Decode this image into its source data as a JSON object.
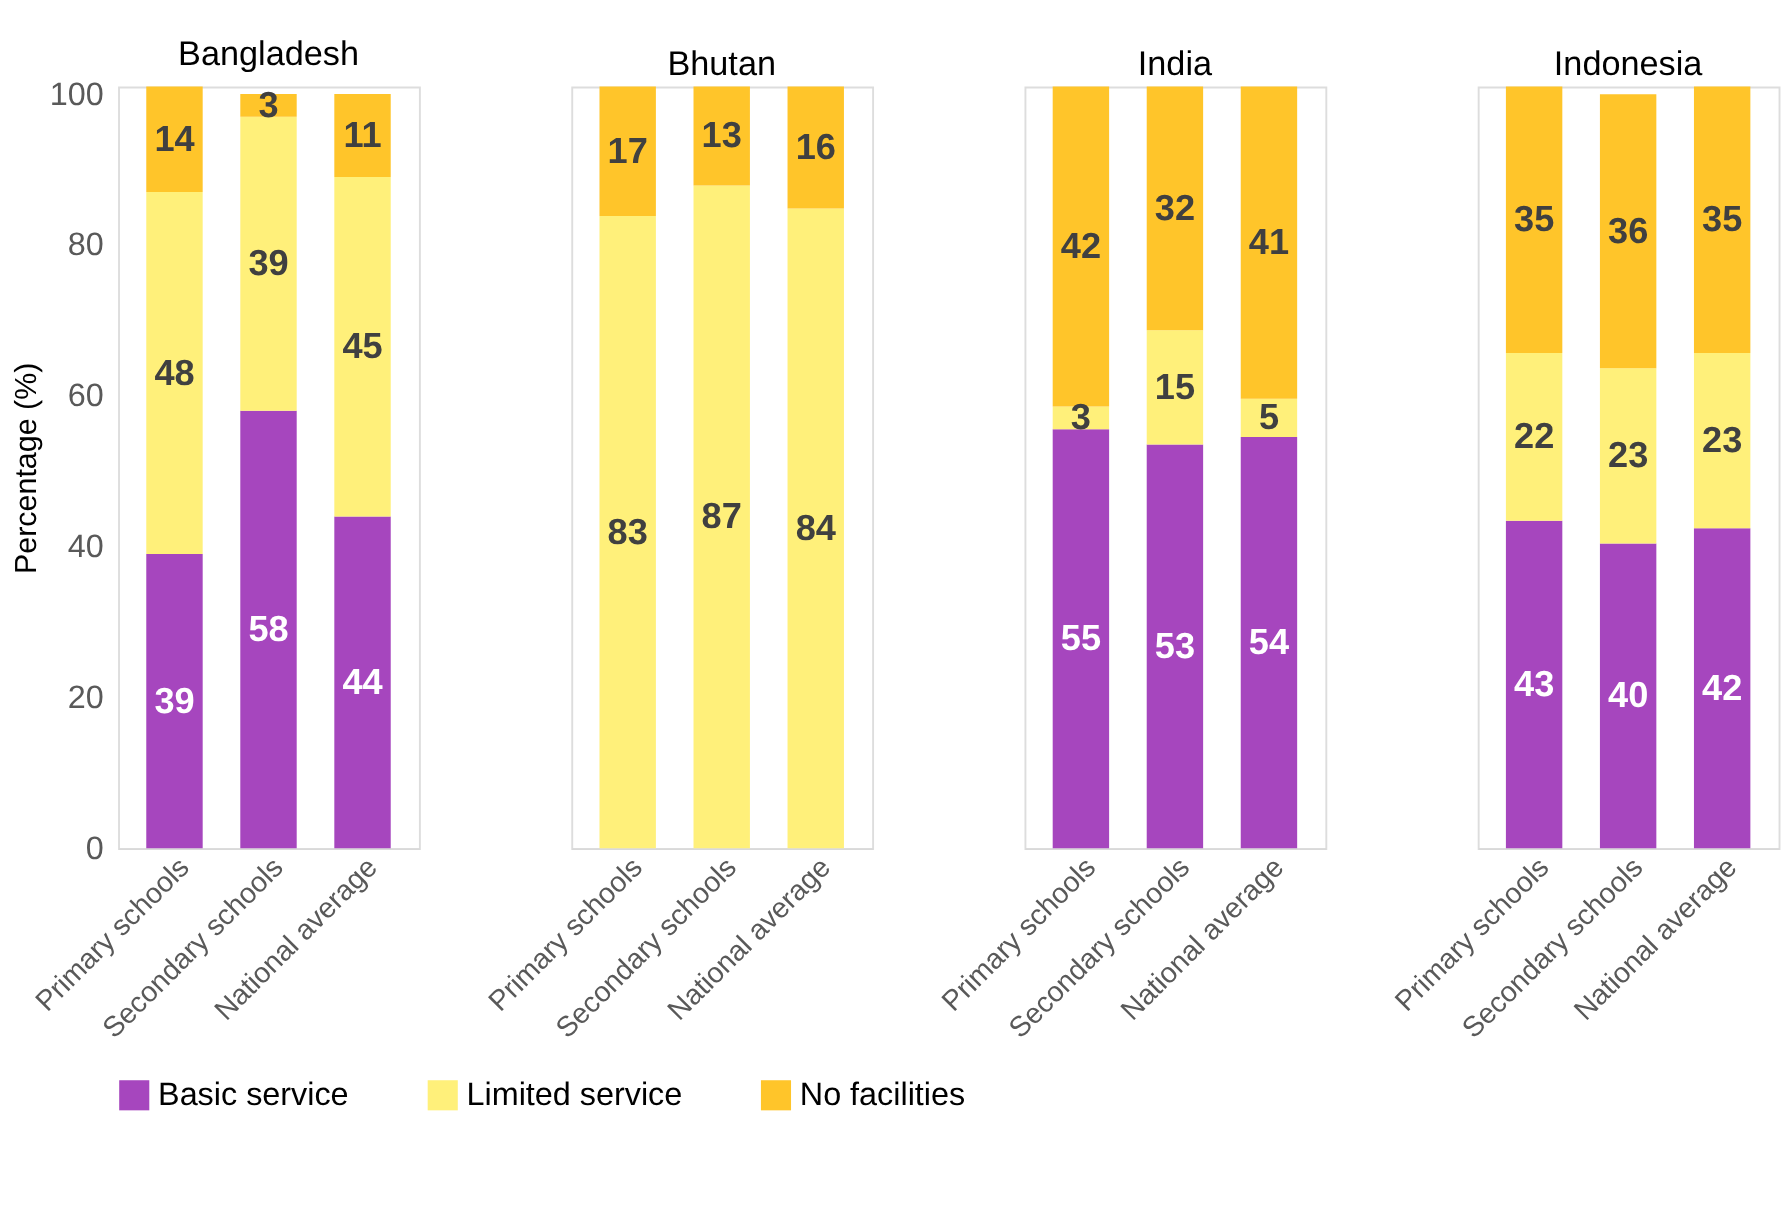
{
  "chart_data": [
    {
      "type": "bar",
      "title": "Bangladesh",
      "ylabel": "Percentage (%)",
      "categories": [
        "Primary schools",
        "Secondary schools",
        "National average"
      ],
      "stacked": true,
      "data_labels": true,
      "ylim": [
        0,
        101
      ],
      "yticks": [
        0,
        20,
        40,
        60,
        80,
        100
      ],
      "grid": false,
      "legend": "bottom",
      "series": [
        {
          "name": "Basic service",
          "color": "#a646be",
          "values": [
            39,
            58,
            44
          ]
        },
        {
          "name": "Limited service",
          "color": "#fff07a",
          "values": [
            48,
            39,
            45
          ]
        },
        {
          "name": "No facilities",
          "color": "#ffc52a",
          "values": [
            14,
            3,
            11
          ]
        }
      ]
    },
    {
      "type": "bar",
      "title": "Bhutan",
      "categories": [
        "Primary schools",
        "Secondary schools",
        "National average"
      ],
      "stacked": true,
      "data_labels": true,
      "ylim": [
        0,
        100
      ],
      "yticks": [
        0,
        20,
        40,
        60,
        80,
        100
      ],
      "grid": false,
      "tick_labels": "x",
      "series": [
        {
          "name": "Basic service",
          "color": "#a646be",
          "values": [
            null,
            null,
            null
          ]
        },
        {
          "name": "Limited service",
          "color": "#fff07a",
          "values": [
            83,
            87,
            84
          ]
        },
        {
          "name": "No facilities",
          "color": "#ffc52a",
          "values": [
            17,
            13,
            16
          ]
        }
      ]
    },
    {
      "type": "bar",
      "title": "India",
      "categories": [
        "Primary schools",
        "Secondary schools",
        "National average"
      ],
      "stacked": true,
      "data_labels": true,
      "ylim": [
        0,
        100
      ],
      "yticks": [
        0,
        20,
        40,
        60,
        80,
        100
      ],
      "grid": false,
      "tick_labels": "x",
      "series": [
        {
          "name": "Basic service",
          "color": "#a646be",
          "values": [
            55,
            53,
            54
          ]
        },
        {
          "name": "Limited service",
          "color": "#fff07a",
          "values": [
            3,
            15,
            5
          ]
        },
        {
          "name": "No facilities",
          "color": "#ffc52a",
          "values": [
            42,
            32,
            41
          ]
        }
      ]
    },
    {
      "type": "bar",
      "title": "Indonesia",
      "categories": [
        "Primary schools",
        "Secondary schools",
        "National average"
      ],
      "stacked": true,
      "data_labels": true,
      "ylim": [
        0,
        100
      ],
      "yticks": [
        0,
        20,
        40,
        60,
        80,
        100
      ],
      "grid": false,
      "tick_labels": "x",
      "series": [
        {
          "name": "Basic service",
          "color": "#a646be",
          "values": [
            43,
            40,
            42
          ]
        },
        {
          "name": "Limited service",
          "color": "#fff07a",
          "values": [
            22,
            23,
            23
          ]
        },
        {
          "name": "No facilities",
          "color": "#ffc52a",
          "values": [
            35,
            36,
            35
          ]
        }
      ]
    }
  ]
}
